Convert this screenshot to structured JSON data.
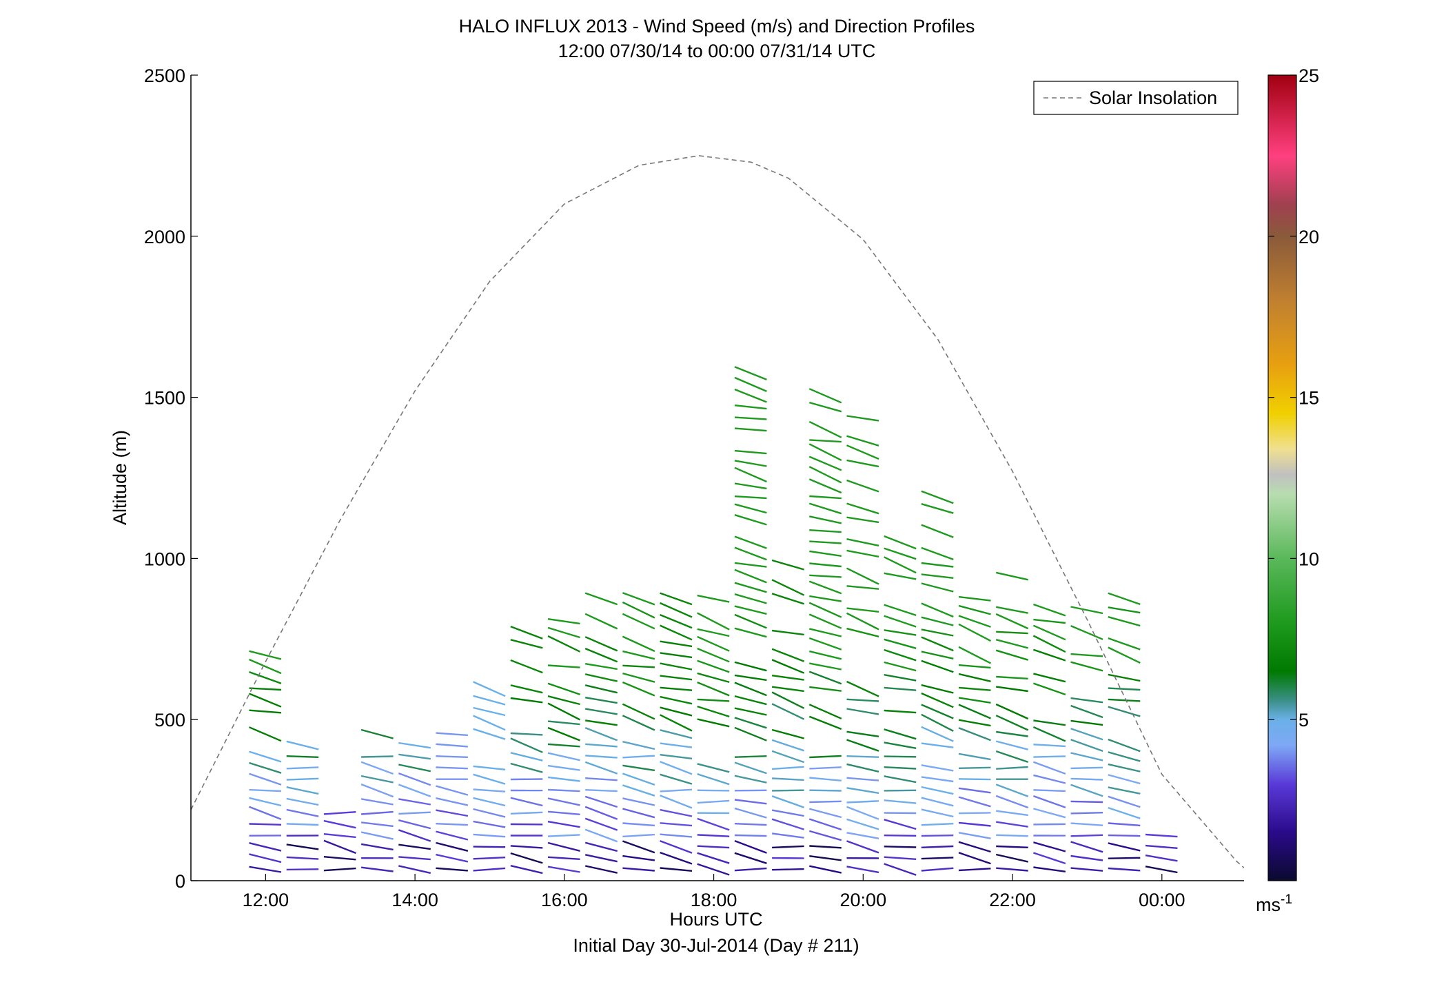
{
  "chart_data": {
    "type": "wind-profile",
    "title": "HALO INFLUX 2013 - Wind Speed (m/s) and Direction Profiles",
    "subtitle": "12:00 07/30/14 to 00:00 07/31/14  UTC",
    "xlabel": "Hours UTC",
    "xlabel2": "Initial Day 30-Jul-2014 (Day # 211)",
    "ylabel": "Altitude (m)",
    "xlim": [
      11.0,
      25.1
    ],
    "ylim": [
      0,
      2500
    ],
    "x_ticks": [
      12,
      14,
      16,
      18,
      20,
      22,
      24
    ],
    "x_tick_labels": [
      "12:00",
      "14:00",
      "16:00",
      "18:00",
      "20:00",
      "22:00",
      "00:00"
    ],
    "y_ticks": [
      0,
      500,
      1000,
      1500,
      2000,
      2500
    ],
    "y_tick_labels": [
      "0",
      "500",
      "1000",
      "1500",
      "2000",
      "2500"
    ],
    "grid": false,
    "legend": {
      "label": "Solar Insolation",
      "placement": "top-right",
      "style": "dashed",
      "color": "#777777"
    },
    "solar_insolation": {
      "x": [
        11.0,
        12.0,
        13.0,
        14.0,
        15.0,
        16.0,
        17.0,
        17.8,
        18.5,
        19.0,
        20.0,
        21.0,
        22.0,
        23.0,
        24.0,
        25.0,
        25.1
      ],
      "y": [
        220,
        680,
        1120,
        1520,
        1860,
        2100,
        2220,
        2250,
        2230,
        2180,
        1990,
        1680,
        1270,
        810,
        330,
        60,
        40
      ]
    },
    "colorbar": {
      "label": "ms",
      "label_superscript": "-1",
      "range": [
        0,
        25
      ],
      "ticks": [
        5,
        10,
        15,
        20,
        25
      ],
      "tick_labels": [
        "5",
        "10",
        "15",
        "20",
        "25"
      ],
      "stops": [
        {
          "v": 0,
          "c": "#0a0a2e"
        },
        {
          "v": 1.5,
          "c": "#2a0a8a"
        },
        {
          "v": 3.0,
          "c": "#5a3ad8"
        },
        {
          "v": 4.2,
          "c": "#7ea8f5"
        },
        {
          "v": 5.0,
          "c": "#6ab0e8"
        },
        {
          "v": 5.6,
          "c": "#3a8f86"
        },
        {
          "v": 6.5,
          "c": "#007a00"
        },
        {
          "v": 8.0,
          "c": "#1e9a1e"
        },
        {
          "v": 10.0,
          "c": "#5ab85a"
        },
        {
          "v": 12.0,
          "c": "#b8ddb0"
        },
        {
          "v": 12.6,
          "c": "#c0c0c0"
        },
        {
          "v": 13.4,
          "c": "#f0e090"
        },
        {
          "v": 14.5,
          "c": "#f0d000"
        },
        {
          "v": 16.0,
          "c": "#e8a010"
        },
        {
          "v": 18.0,
          "c": "#c08030"
        },
        {
          "v": 20.0,
          "c": "#8a5a3a"
        },
        {
          "v": 21.0,
          "c": "#a04050"
        },
        {
          "v": 22.5,
          "c": "#ff4080"
        },
        {
          "v": 25.0,
          "c": "#a00010"
        }
      ]
    },
    "barb_timestep_hours": 0.5,
    "times": [
      12.0,
      12.5,
      13.0,
      13.5,
      14.0,
      14.5,
      15.0,
      15.5,
      16.0,
      16.5,
      17.0,
      17.5,
      18.0,
      18.5,
      19.0,
      19.5,
      20.0,
      20.5,
      21.0,
      21.5,
      22.0,
      22.5,
      23.0,
      23.5,
      24.0
    ],
    "profile_top_m": [
      700,
      450,
      210,
      470,
      420,
      470,
      610,
      810,
      810,
      900,
      900,
      880,
      880,
      1590,
      1000,
      1520,
      1500,
      1080,
      1220,
      890,
      1010,
      860,
      850,
      900,
      150
    ],
    "profile_speed_cap_ms": [
      8,
      7,
      3,
      7,
      7,
      4,
      5,
      7,
      8,
      8,
      8,
      7,
      8,
      8,
      7,
      8,
      8,
      8,
      8,
      8,
      8,
      8,
      8,
      8,
      3
    ],
    "altitude_spacing_m": 35
  }
}
